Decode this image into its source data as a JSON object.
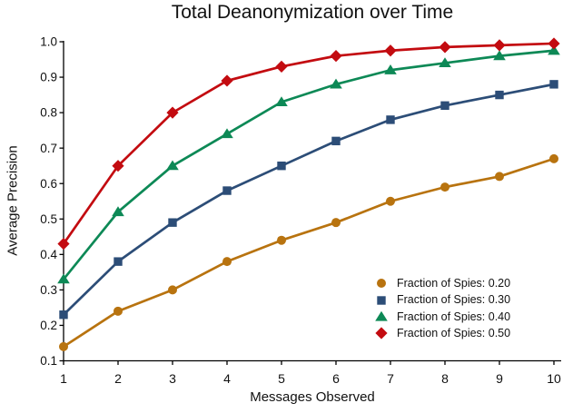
{
  "chart_data": {
    "type": "line",
    "title": "Total Deanonymization over Time",
    "xlabel": "Messages Observed",
    "ylabel": "Average Precision",
    "x": [
      1,
      2,
      3,
      4,
      5,
      6,
      7,
      8,
      9,
      10
    ],
    "xlim": [
      1,
      10
    ],
    "ylim": [
      0.1,
      1.0
    ],
    "xticks": [
      1,
      2,
      3,
      4,
      5,
      6,
      7,
      8,
      9,
      10
    ],
    "yticks": [
      0.1,
      0.2,
      0.3,
      0.4,
      0.5,
      0.6,
      0.7,
      0.8,
      0.9,
      1.0
    ],
    "grid": false,
    "legend_position": "lower right",
    "axis_color": "#000000",
    "series": [
      {
        "name": "Fraction of Spies: 0.20",
        "marker": "circle",
        "color": "#B8730F",
        "values": [
          0.14,
          0.24,
          0.3,
          0.38,
          0.44,
          0.49,
          0.55,
          0.59,
          0.62,
          0.67
        ]
      },
      {
        "name": "Fraction of Spies: 0.30",
        "marker": "square",
        "color": "#2C4D77",
        "values": [
          0.23,
          0.38,
          0.49,
          0.58,
          0.65,
          0.72,
          0.78,
          0.82,
          0.85,
          0.88
        ]
      },
      {
        "name": "Fraction of Spies: 0.40",
        "marker": "triangle",
        "color": "#0D8956",
        "values": [
          0.33,
          0.52,
          0.65,
          0.74,
          0.83,
          0.88,
          0.92,
          0.94,
          0.96,
          0.975
        ]
      },
      {
        "name": "Fraction of Spies: 0.50",
        "marker": "diamond",
        "color": "#C30B10",
        "values": [
          0.43,
          0.65,
          0.8,
          0.89,
          0.93,
          0.96,
          0.975,
          0.985,
          0.99,
          0.995
        ]
      }
    ]
  }
}
